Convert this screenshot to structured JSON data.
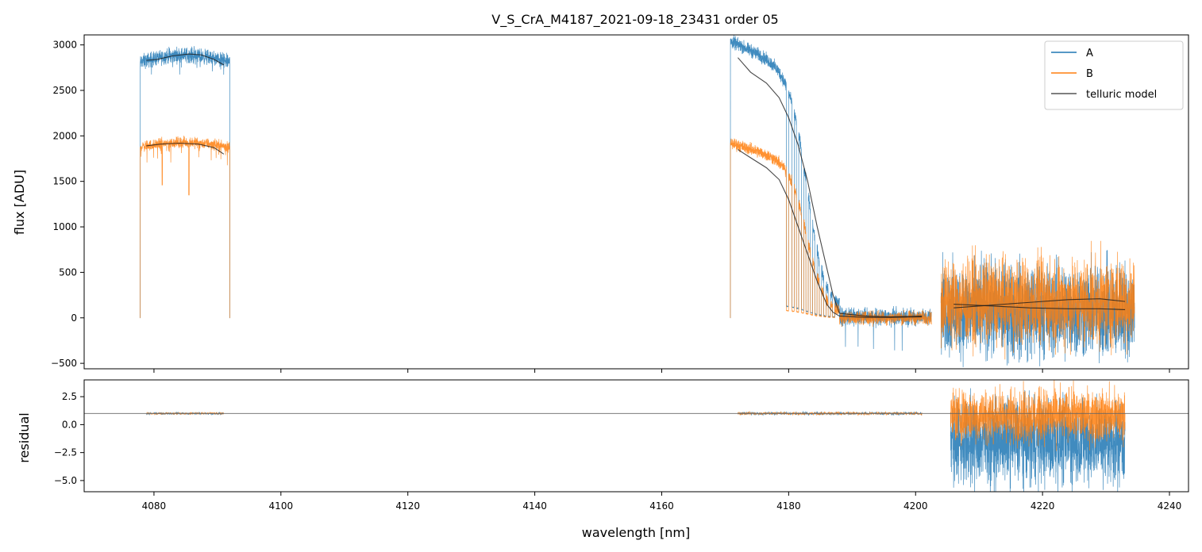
{
  "chart_data": [
    {
      "type": "line",
      "panel": "top",
      "title": "V_S_CrA_M4187_2021-09-18_23431  order 05",
      "xlabel": "",
      "ylabel": "flux [ADU]",
      "xlim": [
        4069,
        4243
      ],
      "ylim": [
        -560,
        3110
      ],
      "xticks": [
        4080,
        4100,
        4120,
        4140,
        4160,
        4180,
        4200,
        4220,
        4240
      ],
      "yticks": [
        -500,
        0,
        500,
        1000,
        1500,
        2000,
        2500,
        3000
      ],
      "ytick_labels": [
        "−500",
        "0",
        "500",
        "1000",
        "1500",
        "2000",
        "2500",
        "3000"
      ],
      "legend": {
        "position": "upper-right",
        "entries": [
          "A",
          "B",
          "telluric model"
        ]
      },
      "colors": {
        "A": "#1f77b4",
        "B": "#ff7f0e",
        "model": "#000000"
      },
      "segments": [
        {
          "x_start": 4077.8,
          "x_end": 4092.0,
          "A_level": 2810,
          "B_level": 1880
        },
        {
          "x_start": 4170.8,
          "x_end": 4188.0,
          "A_level_start": 2950,
          "A_level_end": 100,
          "B_level_start": 1880,
          "B_level_end": 0
        },
        {
          "x_start": 4188.0,
          "x_end": 4202.5,
          "A_level": 10,
          "B_level": 0,
          "noise": 80
        },
        {
          "x_start": 4204.0,
          "x_end": 4234.5,
          "A_level": 80,
          "B_level": 180,
          "noise": 400
        }
      ],
      "series": [
        {
          "name": "telluric model (A)",
          "x": [
            4078.8,
            4080.5,
            4083,
            4085.5,
            4087.5,
            4089.5,
            4091
          ],
          "values": [
            2830,
            2840,
            2880,
            2900,
            2890,
            2840,
            2780
          ]
        },
        {
          "name": "telluric model (B)",
          "x": [
            4078.8,
            4081,
            4084,
            4087,
            4089.5,
            4091
          ],
          "values": [
            1890,
            1910,
            1920,
            1910,
            1870,
            1800
          ]
        },
        {
          "name": "telluric model (A)",
          "x": [
            4172,
            4174,
            4176.5,
            4178.5,
            4180,
            4181.5,
            4183,
            4184.5,
            4186,
            4187,
            4188,
            4192,
            4196,
            4201
          ],
          "values": [
            2860,
            2700,
            2580,
            2420,
            2200,
            1900,
            1500,
            1000,
            550,
            250,
            50,
            20,
            10,
            20
          ]
        },
        {
          "name": "telluric model (B)",
          "x": [
            4172,
            4174,
            4176.5,
            4178.5,
            4180,
            4181.5,
            4183,
            4184.5,
            4186,
            4187,
            4188,
            4192,
            4196,
            4201
          ],
          "values": [
            1850,
            1760,
            1650,
            1520,
            1300,
            1000,
            700,
            400,
            150,
            60,
            20,
            5,
            5,
            10
          ]
        },
        {
          "name": "telluric model (A)",
          "x": [
            4206,
            4212,
            4218,
            4224,
            4229,
            4233
          ],
          "values": [
            150,
            130,
            110,
            100,
            100,
            90
          ]
        },
        {
          "name": "telluric model (B)",
          "x": [
            4206,
            4212,
            4218,
            4224,
            4229,
            4233
          ],
          "values": [
            110,
            140,
            170,
            200,
            210,
            180
          ]
        }
      ]
    },
    {
      "type": "line",
      "panel": "bottom",
      "xlabel": "wavelength [nm]",
      "ylabel": "residual",
      "xlim": [
        4069,
        4243
      ],
      "ylim": [
        -6.0,
        4.0
      ],
      "xticks": [
        4080,
        4100,
        4120,
        4140,
        4160,
        4180,
        4200,
        4220,
        4240
      ],
      "xtick_labels": [
        "4080",
        "4100",
        "4120",
        "4140",
        "4160",
        "4180",
        "4200",
        "4220",
        "4240"
      ],
      "yticks": [
        -5.0,
        -2.5,
        0.0,
        2.5
      ],
      "ytick_labels": [
        "−5.0",
        "−2.5",
        "0.0",
        "2.5"
      ],
      "reference_line": 1.0,
      "segments": [
        {
          "x_start": 4078.8,
          "x_end": 4091.0,
          "level": 1.0,
          "noise": 0.08
        },
        {
          "x_start": 4172.0,
          "x_end": 4201.0,
          "level": 1.0,
          "noise": 0.12
        },
        {
          "x_start": 4205.5,
          "x_end": 4233.0,
          "A_level": -1.5,
          "A_noise": 3.2,
          "B_level": 0.8,
          "B_noise": 2.0
        }
      ]
    }
  ]
}
